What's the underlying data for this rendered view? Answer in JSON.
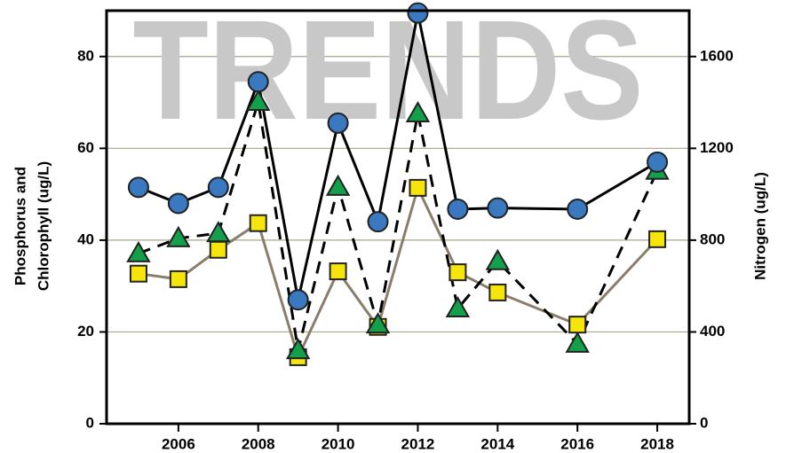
{
  "chart_data": {
    "type": "line",
    "watermark": "TRENDS",
    "y_label": [
      "Phosphorus and",
      "Chlorophyll (ug/L)"
    ],
    "y2_label": "Nitrogen (ug/L)",
    "x": [
      2005,
      2006,
      2007,
      2008,
      2009,
      2010,
      2011,
      2012,
      2013,
      2014,
      2016,
      2018
    ],
    "xlim": [
      2004.2,
      2018.8
    ],
    "xticks": [
      2006,
      2008,
      2010,
      2012,
      2014,
      2016,
      2018
    ],
    "ylim": [
      0,
      90
    ],
    "yticks": [
      0,
      20,
      40,
      60,
      80
    ],
    "y2lim": [
      0,
      1800
    ],
    "y2ticks": [
      0,
      400,
      800,
      1200,
      1600
    ],
    "grid": true,
    "series": [
      {
        "marker": "square",
        "line": "solid",
        "color": "#f5e50a",
        "line_color": "#8a7d6a",
        "values": [
          32.7,
          31.5,
          37.9,
          43.7,
          14.5,
          33.2,
          21.1,
          51.4,
          33.0,
          28.6,
          21.6,
          40.2
        ]
      },
      {
        "marker": "triangle",
        "line": "dashed",
        "color": "#14a04a",
        "line_color": "#000000",
        "values": [
          37.1,
          40.4,
          41.5,
          70.1,
          16.0,
          51.6,
          21.6,
          67.6,
          25.1,
          35.4,
          17.4,
          55.1
        ]
      },
      {
        "marker": "circle",
        "line": "solid",
        "color": "#3a78c0",
        "line_color": "#000000",
        "axis": "y2",
        "values": [
          1030,
          960,
          1030,
          1490,
          540,
          1310,
          880,
          1790,
          935,
          940,
          935,
          1140
        ]
      }
    ]
  }
}
